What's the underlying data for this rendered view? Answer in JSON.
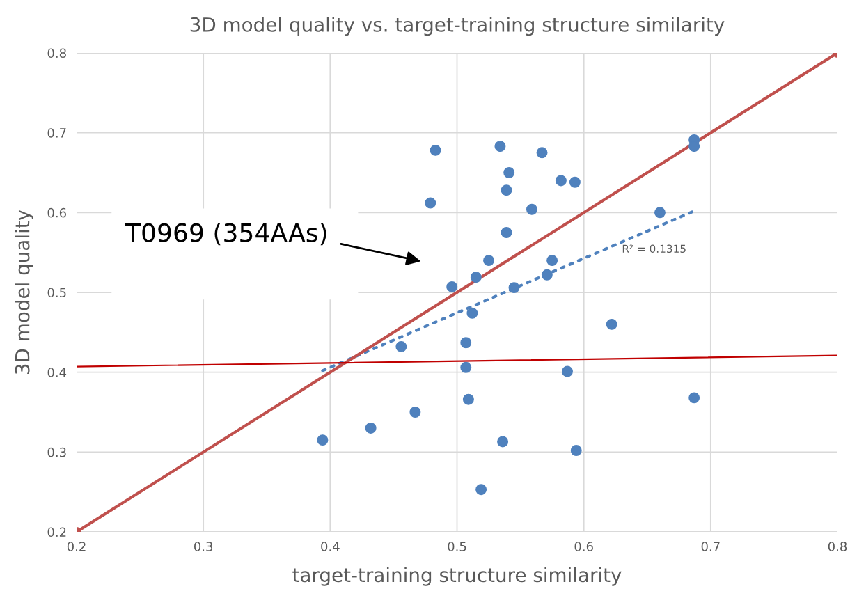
{
  "chart_data": {
    "type": "scatter",
    "title": "3D model quality vs. target-training structure similarity",
    "xlabel": "target-training structure similarity",
    "ylabel": "3D model quality",
    "xlim": [
      0.2,
      0.8
    ],
    "xticks": [
      0.2,
      0.3,
      0.4,
      0.5,
      0.6,
      0.7,
      0.8
    ],
    "ylim": [
      0.2,
      0.8
    ],
    "yticks": [
      0.2,
      0.3,
      0.4,
      0.5,
      0.6,
      0.7,
      0.8
    ],
    "grid": true,
    "legend": false,
    "marker": "circle",
    "series": [
      {
        "color": "#4f81bd",
        "x": [
          0.483,
          0.534,
          0.567,
          0.541,
          0.539,
          0.479,
          0.559,
          0.539,
          0.525,
          0.515,
          0.496,
          0.545,
          0.571,
          0.575,
          0.512,
          0.582,
          0.593,
          0.456,
          0.507,
          0.507,
          0.587,
          0.509,
          0.467,
          0.432,
          0.394,
          0.536,
          0.594,
          0.519,
          0.687,
          0.687,
          0.66,
          0.622,
          0.687
        ],
        "values": [
          0.678,
          0.683,
          0.675,
          0.65,
          0.628,
          0.612,
          0.604,
          0.575,
          0.54,
          0.519,
          0.507,
          0.506,
          0.522,
          0.54,
          0.474,
          0.64,
          0.638,
          0.432,
          0.437,
          0.406,
          0.401,
          0.366,
          0.35,
          0.33,
          0.315,
          0.313,
          0.302,
          0.253,
          0.691,
          0.683,
          0.6,
          0.46,
          0.368
        ]
      },
      {
        "type": "line",
        "color": "#4f81bd",
        "line_style": "dotted",
        "marker": "none",
        "x": [
          0.394,
          0.687
        ],
        "values": [
          0.402,
          0.602
        ]
      },
      {
        "type": "line",
        "color": "#c0504d",
        "line_style": "solid",
        "marker": "circle",
        "x": [
          0.2,
          0.8
        ],
        "values": [
          0.2,
          0.8
        ]
      },
      {
        "type": "line",
        "color": "#c00000",
        "line_style": "solid",
        "marker": "none",
        "x": [
          0.2,
          0.8
        ],
        "values": [
          0.407,
          0.421
        ]
      }
    ],
    "annotations": [
      "T0969 (354AAs)",
      "R² = 0.1315"
    ]
  }
}
